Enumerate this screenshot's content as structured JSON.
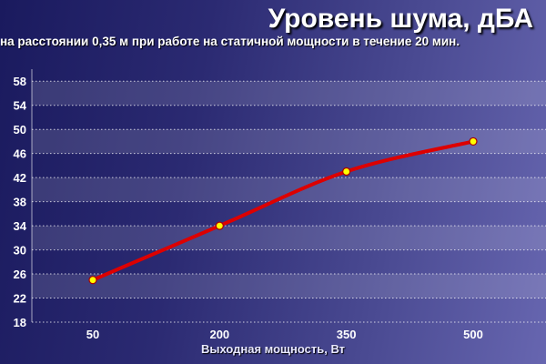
{
  "chart_data": {
    "type": "line",
    "title": "Уровень шума, дБА",
    "subtitle": "на расстоянии 0,35 м при работе на статичной мощности в течение 20 мин.",
    "xlabel": "Выходная мощность, Вт",
    "ylabel": "",
    "categories": [
      "50",
      "200",
      "350",
      "500"
    ],
    "yticks": [
      18,
      22,
      26,
      30,
      34,
      38,
      42,
      46,
      50,
      54,
      58
    ],
    "ylim": [
      18,
      60
    ],
    "series": [
      {
        "values": [
          25,
          34,
          43,
          48
        ]
      }
    ],
    "grid": true,
    "colors": {
      "line": "#dd0000",
      "marker": "#ffff00",
      "band": "#ffffff"
    }
  }
}
